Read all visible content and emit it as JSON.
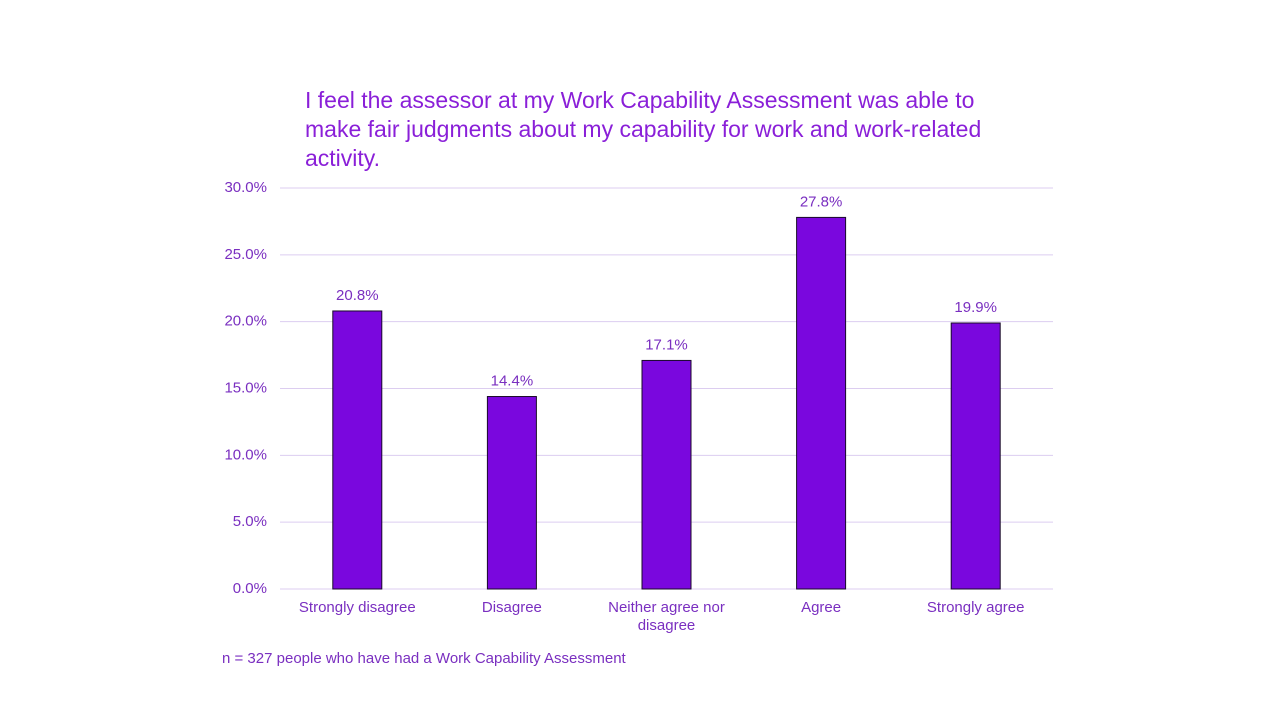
{
  "chart_data": {
    "type": "bar",
    "title": "I feel the assessor at my Work Capability Assessment was able to make fair judgments about my capability for work and work-related activity.",
    "categories": [
      "Strongly disagree",
      "Disagree",
      "Neither agree nor disagree",
      "Agree",
      "Strongly agree"
    ],
    "values": [
      20.8,
      14.4,
      17.1,
      27.8,
      19.9
    ],
    "value_labels": [
      "20.8%",
      "14.4%",
      "17.1%",
      "27.8%",
      "19.9%"
    ],
    "color": "#7a07de",
    "ylim": [
      0,
      30
    ],
    "yticks": [
      {
        "value": 0,
        "label": "0.0%"
      },
      {
        "value": 5,
        "label": "5.0%"
      },
      {
        "value": 10,
        "label": "10.0%"
      },
      {
        "value": 15,
        "label": "15.0%"
      },
      {
        "value": 20,
        "label": "20.0%"
      },
      {
        "value": 25,
        "label": "25.0%"
      },
      {
        "value": 30,
        "label": "30.0%"
      }
    ],
    "grid": true,
    "footnote": "n = 327 people who have had a Work Capability Assessment"
  }
}
